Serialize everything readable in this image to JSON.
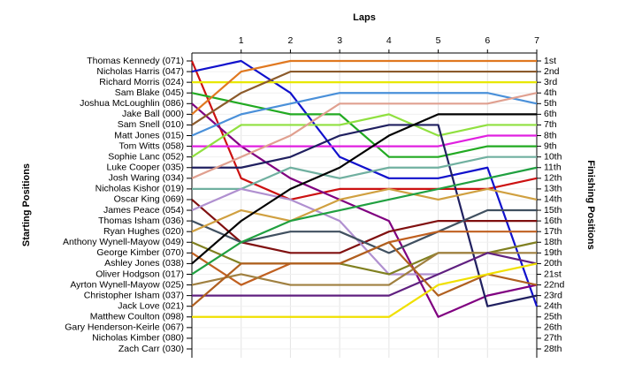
{
  "chart_data": {
    "type": "line",
    "title": "Laps",
    "y_label": "Starting Positions",
    "y2_label": "Finishing Positions",
    "x": [
      0,
      1,
      2,
      3,
      4,
      5,
      6,
      7
    ],
    "xlim": [
      0,
      7
    ],
    "xticks": [
      1,
      2,
      3,
      4,
      5,
      6,
      7
    ],
    "ylim": [
      1,
      28
    ],
    "y2lim": [
      1,
      28
    ],
    "yticks": [
      {
        "value": 1,
        "label": "Thomas Kennedy (071)"
      },
      {
        "value": 2,
        "label": "Nicholas Harris (047)"
      },
      {
        "value": 3,
        "label": "Richard Morris (024)"
      },
      {
        "value": 4,
        "label": "Sam Blake (045)"
      },
      {
        "value": 5,
        "label": "Joshua McLoughlin (086)"
      },
      {
        "value": 6,
        "label": "Jake Ball (000)"
      },
      {
        "value": 7,
        "label": "Sam Snell (010)"
      },
      {
        "value": 8,
        "label": "Matt Jones (015)"
      },
      {
        "value": 9,
        "label": "Tom Witts (058)"
      },
      {
        "value": 10,
        "label": "Sophie Lanc (052)"
      },
      {
        "value": 11,
        "label": "Luke Cooper (035)"
      },
      {
        "value": 12,
        "label": "Josh Waring (034)"
      },
      {
        "value": 13,
        "label": "Nicholas Kishor (019)"
      },
      {
        "value": 14,
        "label": "Oscar King (069)"
      },
      {
        "value": 15,
        "label": "James Peace (054)"
      },
      {
        "value": 16,
        "label": "Thomas Isham (036)"
      },
      {
        "value": 17,
        "label": "Ryan Hughes (020)"
      },
      {
        "value": 18,
        "label": "Anthony Wynell-Mayow (049)"
      },
      {
        "value": 19,
        "label": "George Kimber (070)"
      },
      {
        "value": 20,
        "label": "Ashley Jones (038)"
      },
      {
        "value": 21,
        "label": "Oliver Hodgson (017)"
      },
      {
        "value": 22,
        "label": "Ayrton Wynell-Mayow (025)"
      },
      {
        "value": 23,
        "label": "Christopher Isham (037)"
      },
      {
        "value": 24,
        "label": "Jack Love (021)"
      },
      {
        "value": 25,
        "label": "Matthew Coulton (098)"
      },
      {
        "value": 26,
        "label": "Gary Henderson-Keirle (067)"
      },
      {
        "value": 27,
        "label": "Nicholas Kimber (080)"
      },
      {
        "value": 28,
        "label": "Zach Carr (030)"
      }
    ],
    "y2ticks": [
      {
        "value": 1,
        "label": "1st"
      },
      {
        "value": 2,
        "label": "2nd"
      },
      {
        "value": 3,
        "label": "3rd"
      },
      {
        "value": 4,
        "label": "4th"
      },
      {
        "value": 5,
        "label": "5th"
      },
      {
        "value": 6,
        "label": "6th"
      },
      {
        "value": 7,
        "label": "7th"
      },
      {
        "value": 8,
        "label": "8th"
      },
      {
        "value": 9,
        "label": "9th"
      },
      {
        "value": 10,
        "label": "10th"
      },
      {
        "value": 11,
        "label": "11th"
      },
      {
        "value": 12,
        "label": "12th"
      },
      {
        "value": 13,
        "label": "13th"
      },
      {
        "value": 14,
        "label": "14th"
      },
      {
        "value": 15,
        "label": "15th"
      },
      {
        "value": 16,
        "label": "16th"
      },
      {
        "value": 17,
        "label": "17th"
      },
      {
        "value": 18,
        "label": "18th"
      },
      {
        "value": 19,
        "label": "19th"
      },
      {
        "value": 20,
        "label": "20th"
      },
      {
        "value": 21,
        "label": "21st"
      },
      {
        "value": 22,
        "label": "22nd"
      },
      {
        "value": 23,
        "label": "23rd"
      },
      {
        "value": 24,
        "label": "24th"
      },
      {
        "value": 25,
        "label": "25th"
      },
      {
        "value": 26,
        "label": "26th"
      },
      {
        "value": 27,
        "label": "27th"
      },
      {
        "value": 28,
        "label": "28th"
      }
    ],
    "grid": true,
    "series": [
      {
        "color": "#cc1111",
        "values": [
          1,
          12,
          14,
          13,
          13,
          13,
          13,
          12
        ]
      },
      {
        "color": "#1111cc",
        "values": [
          2,
          1,
          4,
          10,
          12,
          12,
          11,
          24
        ]
      },
      {
        "color": "#e8e800",
        "values": [
          3,
          3,
          3,
          3,
          3,
          3,
          3,
          3
        ]
      },
      {
        "color": "#22aa22",
        "values": [
          4,
          5,
          6,
          6,
          10,
          10,
          9,
          9
        ]
      },
      {
        "color": "#800080",
        "values": [
          5,
          9,
          12,
          14,
          16,
          25,
          23,
          22
        ]
      },
      {
        "color": "#e07820",
        "values": [
          6,
          2,
          1,
          1,
          1,
          1,
          1,
          1
        ]
      },
      {
        "color": "#8b5a2b",
        "values": [
          7,
          4,
          2,
          2,
          2,
          2,
          2,
          2
        ]
      },
      {
        "color": "#4a90d9",
        "values": [
          8,
          6,
          5,
          4,
          4,
          4,
          4,
          5
        ]
      },
      {
        "color": "#e020e0",
        "values": [
          9,
          9,
          9,
          9,
          9,
          9,
          8,
          8
        ]
      },
      {
        "color": "#90e040",
        "values": [
          10,
          7,
          7,
          7,
          6,
          8,
          7,
          7
        ]
      },
      {
        "color": "#202060",
        "values": [
          11,
          11,
          10,
          8,
          7,
          7,
          24,
          23
        ]
      },
      {
        "color": "#e0a090",
        "values": [
          12,
          10,
          8,
          5,
          5,
          5,
          5,
          4
        ]
      },
      {
        "color": "#70b0a0",
        "values": [
          13,
          13,
          11,
          12,
          11,
          11,
          10,
          10
        ]
      },
      {
        "color": "#801010",
        "values": [
          14,
          18,
          19,
          19,
          17,
          16,
          16,
          16
        ]
      },
      {
        "color": "#b090d0",
        "values": [
          15,
          13,
          14,
          16,
          21,
          21,
          null,
          null
        ]
      },
      {
        "color": "#405060",
        "values": [
          16,
          18,
          17,
          17,
          19,
          17,
          15,
          15
        ]
      },
      {
        "color": "#d0a040",
        "values": [
          17,
          15,
          16,
          14,
          13,
          14,
          13,
          14
        ]
      },
      {
        "color": "#808020",
        "values": [
          18,
          20,
          20,
          20,
          21,
          19,
          19,
          18
        ]
      },
      {
        "color": "#c06020",
        "values": [
          19,
          22,
          20,
          20,
          18,
          17,
          17,
          17
        ]
      },
      {
        "color": "#000000",
        "values": [
          20,
          16,
          13,
          11,
          8,
          6,
          6,
          6
        ]
      },
      {
        "color": "#20a040",
        "values": [
          21,
          18,
          16,
          15,
          14,
          13,
          12,
          11
        ]
      },
      {
        "color": "#a08040",
        "values": [
          22,
          21,
          22,
          22,
          22,
          19,
          19,
          19
        ]
      },
      {
        "color": "#602080",
        "values": [
          23,
          23,
          23,
          23,
          23,
          21,
          19,
          20
        ]
      },
      {
        "color": "#b06020",
        "values": [
          24,
          20,
          20,
          20,
          18,
          23,
          21,
          22
        ]
      },
      {
        "color": "#f0e000",
        "values": [
          25,
          25,
          25,
          25,
          25,
          22,
          21,
          20
        ]
      }
    ]
  }
}
